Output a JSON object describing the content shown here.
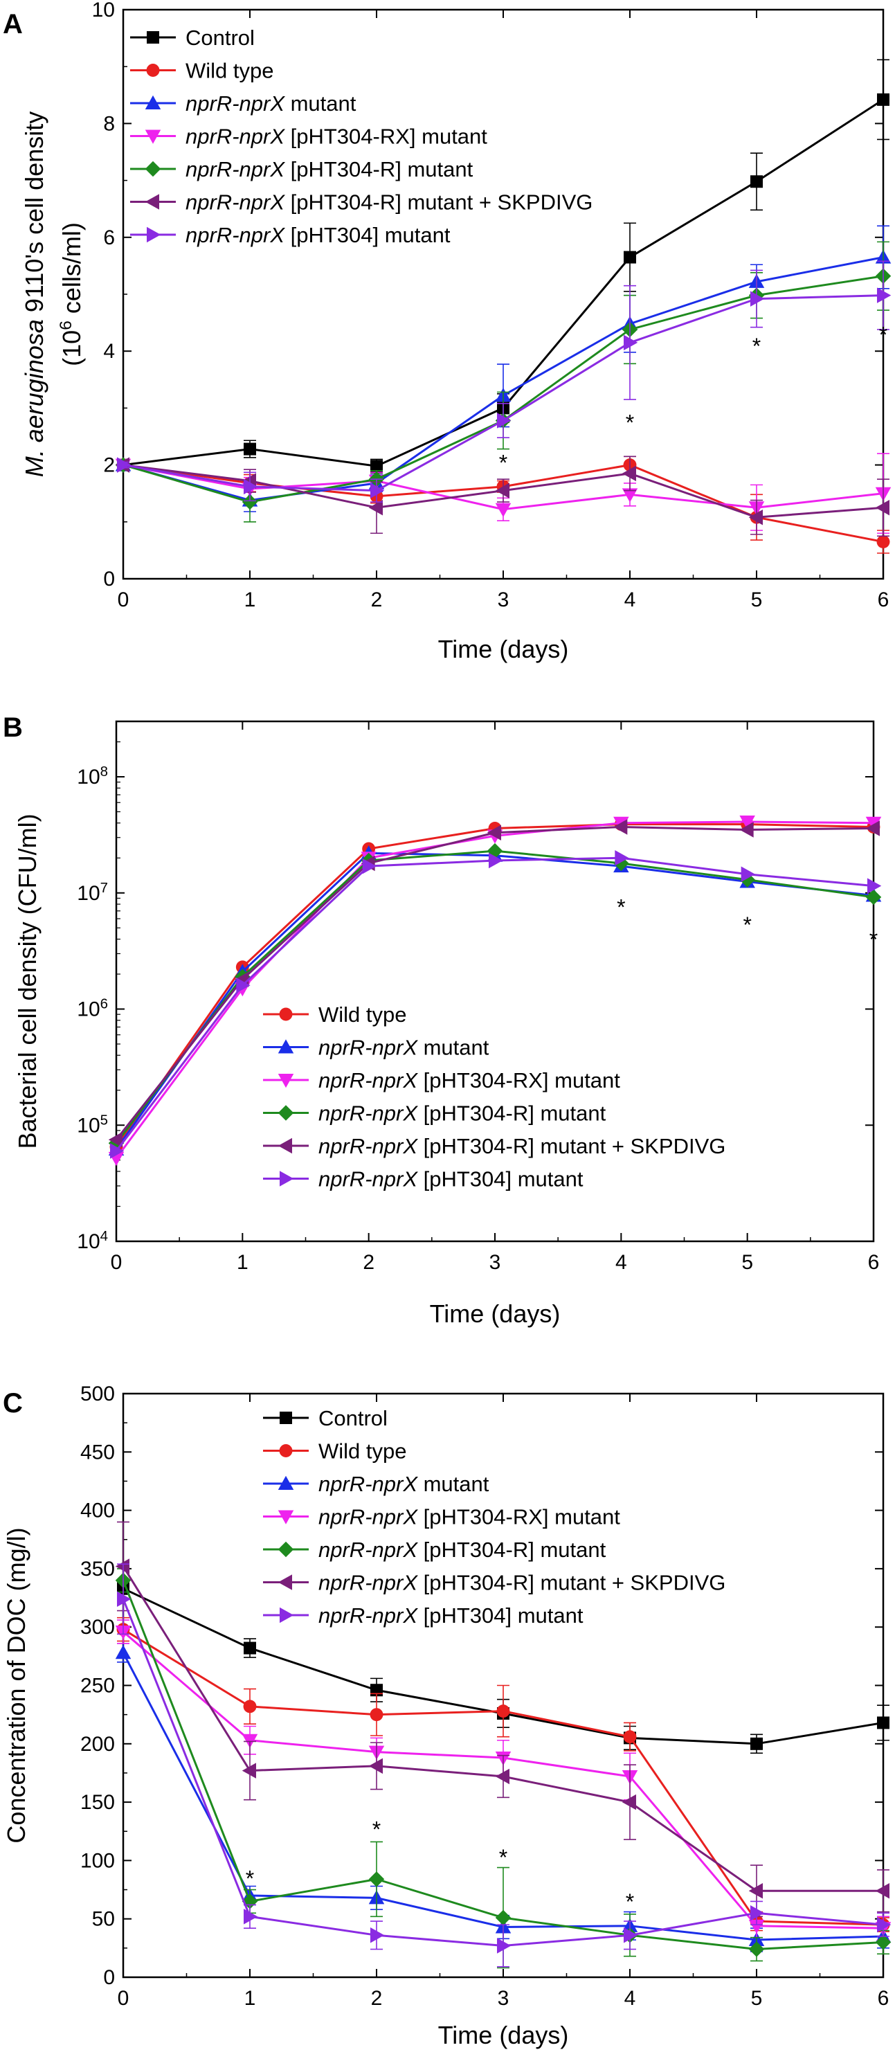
{
  "series_styles": {
    "control": {
      "color": "#000000",
      "marker": "square"
    },
    "wt": {
      "color": "#e8201f",
      "marker": "circle"
    },
    "mut": {
      "color": "#1a2ee8",
      "marker": "tri-up"
    },
    "rx": {
      "color": "#ee22ee",
      "marker": "tri-down"
    },
    "r": {
      "color": "#1e8a1e",
      "marker": "diamond"
    },
    "rsk": {
      "color": "#7a1f7a",
      "marker": "tri-left"
    },
    "p304": {
      "color": "#8a2be2",
      "marker": "tri-right"
    }
  },
  "chart_data": [
    {
      "id": "A",
      "panel_label": "A",
      "type": "line",
      "xlabel": "Time (days)",
      "ylabel_line1": "M. aeruginosa 9110's cell density",
      "ylabel_line2": "(10⁶ cells/ml)",
      "x": [
        0,
        1,
        2,
        3,
        4,
        5,
        6
      ],
      "x_ticks": [
        "0",
        "1",
        "2",
        "3",
        "4",
        "5",
        "6"
      ],
      "y_scale": "linear",
      "ylim": [
        0,
        10
      ],
      "y_ticks": [
        0,
        2,
        4,
        6,
        8,
        10
      ],
      "y_tick_labels": [
        "0",
        "2",
        "4",
        "6",
        "8",
        "10"
      ],
      "series": [
        {
          "key": "control",
          "name": "Control",
          "legend": [
            {
              "t": "Control",
              "i": false
            }
          ],
          "values": [
            2.0,
            2.28,
            1.98,
            3.0,
            5.65,
            6.98,
            8.42
          ],
          "err": [
            0.05,
            0.15,
            0.12,
            0.25,
            0.6,
            0.5,
            0.7
          ]
        },
        {
          "key": "wt",
          "name": "Wild type",
          "legend": [
            {
              "t": "Wild type",
              "i": false
            }
          ],
          "values": [
            2.0,
            1.68,
            1.45,
            1.62,
            2.0,
            1.08,
            0.65
          ],
          "err": [
            0.05,
            0.15,
            0.12,
            0.1,
            0.15,
            0.4,
            0.2
          ]
        },
        {
          "key": "mut",
          "name": "nprR-nprX mutant",
          "legend": [
            {
              "t": "nprR-nprX",
              "i": true
            },
            {
              "t": " mutant",
              "i": false
            }
          ],
          "values": [
            2.0,
            1.38,
            1.68,
            3.22,
            4.48,
            5.22,
            5.65
          ],
          "err": [
            0.05,
            0.2,
            0.15,
            0.55,
            0.5,
            0.3,
            0.55
          ]
        },
        {
          "key": "rx",
          "name": "nprR-nprX [pHT304-RX] mutant",
          "legend": [
            {
              "t": "nprR-nprX",
              "i": true
            },
            {
              "t": " [pHT304-RX] mutant",
              "i": false
            }
          ],
          "values": [
            2.0,
            1.58,
            1.72,
            1.22,
            1.48,
            1.25,
            1.5
          ],
          "err": [
            0.05,
            0.2,
            0.15,
            0.2,
            0.2,
            0.4,
            0.7
          ]
        },
        {
          "key": "r",
          "name": "nprR-nprX [pHT304-R] mutant",
          "legend": [
            {
              "t": "nprR-nprX",
              "i": true
            },
            {
              "t": " [pHT304-R] mutant",
              "i": false
            }
          ],
          "values": [
            2.0,
            1.35,
            1.75,
            2.78,
            4.38,
            4.98,
            5.32
          ],
          "err": [
            0.05,
            0.35,
            0.15,
            0.5,
            0.6,
            0.4,
            0.6
          ]
        },
        {
          "key": "rsk",
          "name": "nprR-nprX [pHT304-R] mutant + SKPDIVG",
          "legend": [
            {
              "t": "nprR-nprX",
              "i": true
            },
            {
              "t": " [pHT304-R] mutant + SKPDIVG",
              "i": false
            }
          ],
          "values": [
            2.0,
            1.72,
            1.25,
            1.55,
            1.85,
            1.08,
            1.25
          ],
          "err": [
            0.05,
            0.2,
            0.45,
            0.2,
            0.3,
            0.3,
            0.5
          ]
        },
        {
          "key": "p304",
          "name": "nprR-nprX [pHT304] mutant",
          "legend": [
            {
              "t": "nprR-nprX",
              "i": true
            },
            {
              "t": " [pHT304] mutant",
              "i": false
            }
          ],
          "values": [
            2.0,
            1.62,
            1.55,
            2.78,
            4.15,
            4.92,
            4.98
          ],
          "err": [
            0.05,
            0.25,
            0.2,
            0.3,
            1.0,
            0.5,
            0.6
          ]
        }
      ],
      "annotations": [
        {
          "text": "*",
          "x": 3,
          "y": 2.15
        },
        {
          "text": "*",
          "x": 4,
          "y": 2.85
        },
        {
          "text": "*",
          "x": 5,
          "y": 4.2
        },
        {
          "text": "*",
          "x": 6,
          "y": 4.4
        }
      ]
    },
    {
      "id": "B",
      "panel_label": "B",
      "type": "line",
      "xlabel": "Time (days)",
      "ylabel_line1": "Bacterial cell density (CFU/ml)",
      "ylabel_line2": "",
      "x": [
        0,
        1,
        2,
        3,
        4,
        5,
        6
      ],
      "x_ticks": [
        "0",
        "1",
        "2",
        "3",
        "4",
        "5",
        "6"
      ],
      "y_scale": "log",
      "ylim": [
        10000,
        300000000
      ],
      "y_ticks": [
        10000,
        100000,
        1000000,
        10000000,
        100000000
      ],
      "y_tick_labels": [
        "10⁴",
        "10⁵",
        "10⁶",
        "10⁷",
        "10⁸"
      ],
      "series": [
        {
          "key": "wt",
          "name": "Wild type",
          "legend": [
            {
              "t": "Wild type",
              "i": false
            }
          ],
          "values": [
            65000,
            2300000,
            24000000,
            36000000,
            39000000,
            39000000,
            37000000
          ]
        },
        {
          "key": "mut",
          "name": "nprR-nprX mutant",
          "legend": [
            {
              "t": "nprR-nprX",
              "i": true
            },
            {
              "t": " mutant",
              "i": false
            }
          ],
          "values": [
            62000,
            2100000,
            22000000,
            21000000,
            17000000,
            12500000,
            9500000
          ]
        },
        {
          "key": "rx",
          "name": "nprR-nprX [pHT304-RX] mutant",
          "legend": [
            {
              "t": "nprR-nprX",
              "i": true
            },
            {
              "t": " [pHT304-RX] mutant",
              "i": false
            }
          ],
          "values": [
            52000,
            1500000,
            20000000,
            31000000,
            40000000,
            41000000,
            40000000
          ]
        },
        {
          "key": "r",
          "name": "nprR-nprX [pHT304-R] mutant",
          "legend": [
            {
              "t": "nprR-nprX",
              "i": true
            },
            {
              "t": " [pHT304-R] mutant",
              "i": false
            }
          ],
          "values": [
            70000,
            1900000,
            19000000,
            23000000,
            18000000,
            13000000,
            9200000
          ]
        },
        {
          "key": "rsk",
          "name": "nprR-nprX [pHT304-R] mutant + SKPDIVG",
          "legend": [
            {
              "t": "nprR-nprX",
              "i": true
            },
            {
              "t": " [pHT304-R] mutant + SKPDIVG",
              "i": false
            }
          ],
          "values": [
            75000,
            1800000,
            18000000,
            33000000,
            37000000,
            35000000,
            36000000
          ]
        },
        {
          "key": "p304",
          "name": "nprR-nprX [pHT304] mutant",
          "legend": [
            {
              "t": "nprR-nprX",
              "i": true
            },
            {
              "t": " [pHT304] mutant",
              "i": false
            }
          ],
          "values": [
            60000,
            1600000,
            17000000,
            19000000,
            20000000,
            14500000,
            11500000
          ]
        }
      ],
      "annotations": [
        {
          "text": "*",
          "x": 4,
          "y": 8500000
        },
        {
          "text": "*",
          "x": 5,
          "y": 6000000
        },
        {
          "text": "*",
          "x": 6,
          "y": 4500000
        }
      ]
    },
    {
      "id": "C",
      "panel_label": "C",
      "type": "line",
      "xlabel": "Time (days)",
      "ylabel_line1": "Concentration of DOC (mg/l)",
      "ylabel_line2": "",
      "x": [
        0,
        1,
        2,
        3,
        4,
        5,
        6
      ],
      "x_ticks": [
        "0",
        "1",
        "2",
        "3",
        "4",
        "5",
        "6"
      ],
      "y_scale": "linear",
      "ylim": [
        0,
        500
      ],
      "y_ticks": [
        0,
        50,
        100,
        150,
        200,
        250,
        300,
        350,
        400,
        450,
        500
      ],
      "y_tick_labels": [
        "0",
        "50",
        "100",
        "150",
        "200",
        "250",
        "300",
        "350",
        "400",
        "450",
        "500"
      ],
      "series": [
        {
          "key": "control",
          "name": "Control",
          "legend": [
            {
              "t": "Control",
              "i": false
            }
          ],
          "values": [
            333,
            282,
            246,
            226,
            205,
            200,
            218
          ],
          "err": [
            5,
            8,
            10,
            12,
            10,
            8,
            15
          ]
        },
        {
          "key": "wt",
          "name": "Wild type",
          "legend": [
            {
              "t": "Wild type",
              "i": false
            }
          ],
          "values": [
            298,
            232,
            225,
            228,
            206,
            48,
            45
          ],
          "err": [
            10,
            15,
            18,
            22,
            12,
            8,
            6
          ]
        },
        {
          "key": "mut",
          "name": "nprR-nprX mutant",
          "legend": [
            {
              "t": "nprR-nprX",
              "i": true
            },
            {
              "t": " mutant",
              "i": false
            }
          ],
          "values": [
            278,
            70,
            68,
            43,
            44,
            32,
            35
          ],
          "err": [
            8,
            8,
            10,
            10,
            12,
            10,
            10
          ]
        },
        {
          "key": "rx",
          "name": "nprR-nprX [pHT304-RX] mutant",
          "legend": [
            {
              "t": "nprR-nprX",
              "i": true
            },
            {
              "t": " [pHT304-RX] mutant",
              "i": false
            }
          ],
          "values": [
            296,
            203,
            193,
            188,
            172,
            44,
            42
          ],
          "err": [
            10,
            12,
            12,
            15,
            20,
            10,
            10
          ]
        },
        {
          "key": "r",
          "name": "nprR-nprX [pHT304-R] mutant",
          "legend": [
            {
              "t": "nprR-nprX",
              "i": true
            },
            {
              "t": " [pHT304-R] mutant",
              "i": false
            }
          ],
          "values": [
            340,
            65,
            84,
            51,
            36,
            24,
            30
          ],
          "err": [
            10,
            10,
            32,
            43,
            18,
            10,
            10
          ]
        },
        {
          "key": "rsk",
          "name": "nprR-nprX [pHT304-R] mutant + SKPDIVG",
          "legend": [
            {
              "t": "nprR-nprX",
              "i": true
            },
            {
              "t": " [pHT304-R] mutant + SKPDIVG",
              "i": false
            }
          ],
          "values": [
            352,
            177,
            181,
            172,
            150,
            74,
            74
          ],
          "err": [
            38,
            25,
            20,
            18,
            32,
            22,
            18
          ]
        },
        {
          "key": "p304",
          "name": "nprR-nprX [pHT304] mutant",
          "legend": [
            {
              "t": "nprR-nprX",
              "i": true
            },
            {
              "t": " [pHT304] mutant",
              "i": false
            }
          ],
          "values": [
            324,
            52,
            36,
            27,
            36,
            55,
            45
          ],
          "err": [
            30,
            10,
            12,
            18,
            12,
            10,
            10
          ]
        }
      ],
      "annotations": [
        {
          "text": "*",
          "x": 1,
          "y": 90
        },
        {
          "text": "*",
          "x": 2,
          "y": 132
        },
        {
          "text": "*",
          "x": 3,
          "y": 108
        },
        {
          "text": "*",
          "x": 4,
          "y": 70
        }
      ]
    }
  ]
}
